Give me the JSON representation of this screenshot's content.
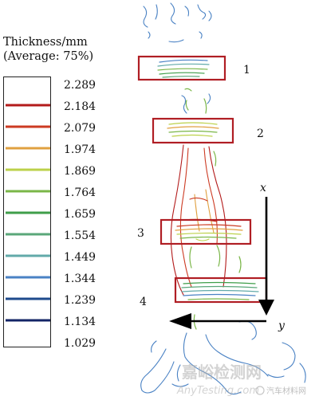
{
  "legend": {
    "title_line1": "Thickness/mm",
    "title_line2": "(Average: 75%)",
    "levels": [
      {
        "label": "2.289",
        "color": null
      },
      {
        "label": "2.184",
        "color": "#b31b1b"
      },
      {
        "label": "2.079",
        "color": "#cc3a22"
      },
      {
        "label": "1.974",
        "color": "#e0a040"
      },
      {
        "label": "1.869",
        "color": "#bcd14a"
      },
      {
        "label": "1.764",
        "color": "#7ab648"
      },
      {
        "label": "1.659",
        "color": "#3f9e4a"
      },
      {
        "label": "1.554",
        "color": "#5aa779"
      },
      {
        "label": "1.449",
        "color": "#62aaa9"
      },
      {
        "label": "1.344",
        "color": "#4a82c4"
      },
      {
        "label": "1.239",
        "color": "#1e4a8c"
      },
      {
        "label": "1.134",
        "color": "#132466"
      },
      {
        "label": "1.029",
        "color": null
      }
    ]
  },
  "regions": [
    {
      "label": "1"
    },
    {
      "label": "2"
    },
    {
      "label": "3"
    },
    {
      "label": "4"
    }
  ],
  "axes": {
    "x_label": "x",
    "y_label": "y"
  },
  "watermark": {
    "line1": "嘉峪检测网",
    "line2": "AnyTesting.com",
    "badge": "汽车材料网"
  },
  "colors": {
    "box": "#b01e24",
    "axis": "#000000"
  }
}
